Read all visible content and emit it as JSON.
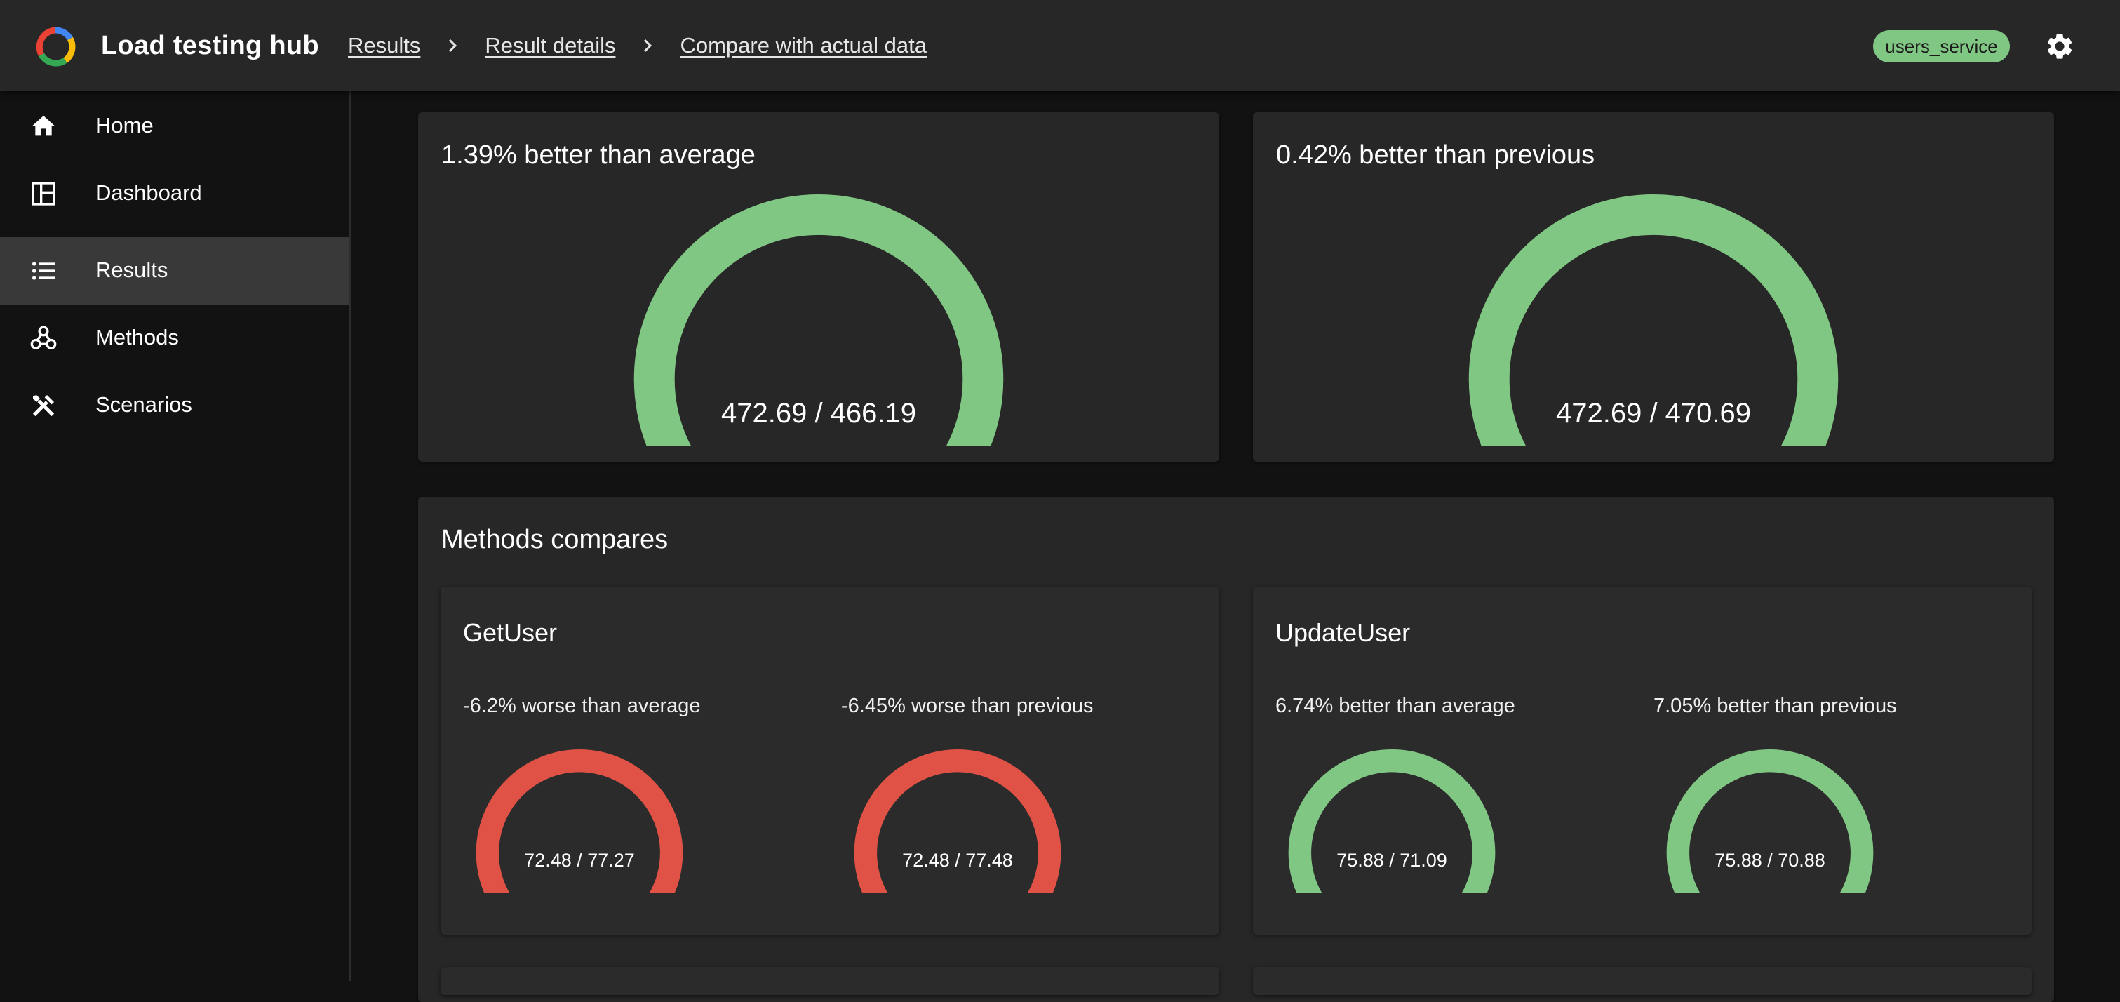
{
  "app": {
    "title": "Load testing hub",
    "service_badge": "users_service"
  },
  "breadcrumbs": [
    "Results",
    "Result details",
    "Compare with actual data"
  ],
  "nav": [
    {
      "label": "Home",
      "icon": "home-icon"
    },
    {
      "label": "Dashboard",
      "icon": "dashboard-icon"
    },
    {
      "label": "Results",
      "icon": "list-icon",
      "active": true
    },
    {
      "label": "Methods",
      "icon": "webhook-icon"
    },
    {
      "label": "Scenarios",
      "icon": "tools-icon"
    }
  ],
  "colors": {
    "better": "#81c784",
    "worse": "#e05245",
    "track": "#444444",
    "badge": "#81c784"
  },
  "summary": [
    {
      "title": "1.39% better than average",
      "value": "472.69 / 466.19",
      "level": 1.0,
      "status": "better"
    },
    {
      "title": "0.42% better than previous",
      "value": "472.69 / 470.69",
      "level": 1.0,
      "status": "better"
    }
  ],
  "methods_section": {
    "title": "Methods compares",
    "methods": [
      {
        "name": "GetUser",
        "metrics": [
          {
            "label": "-6.2% worse than average",
            "value": "72.48 / 77.27",
            "level": 0.94,
            "status": "worse"
          },
          {
            "label": "-6.45% worse than previous",
            "value": "72.48 / 77.48",
            "level": 0.94,
            "status": "worse"
          }
        ]
      },
      {
        "name": "UpdateUser",
        "metrics": [
          {
            "label": "6.74% better than average",
            "value": "75.88 / 71.09",
            "level": 1.0,
            "status": "better"
          },
          {
            "label": "7.05% better than previous",
            "value": "75.88 / 70.88",
            "level": 1.0,
            "status": "better"
          }
        ]
      }
    ]
  }
}
